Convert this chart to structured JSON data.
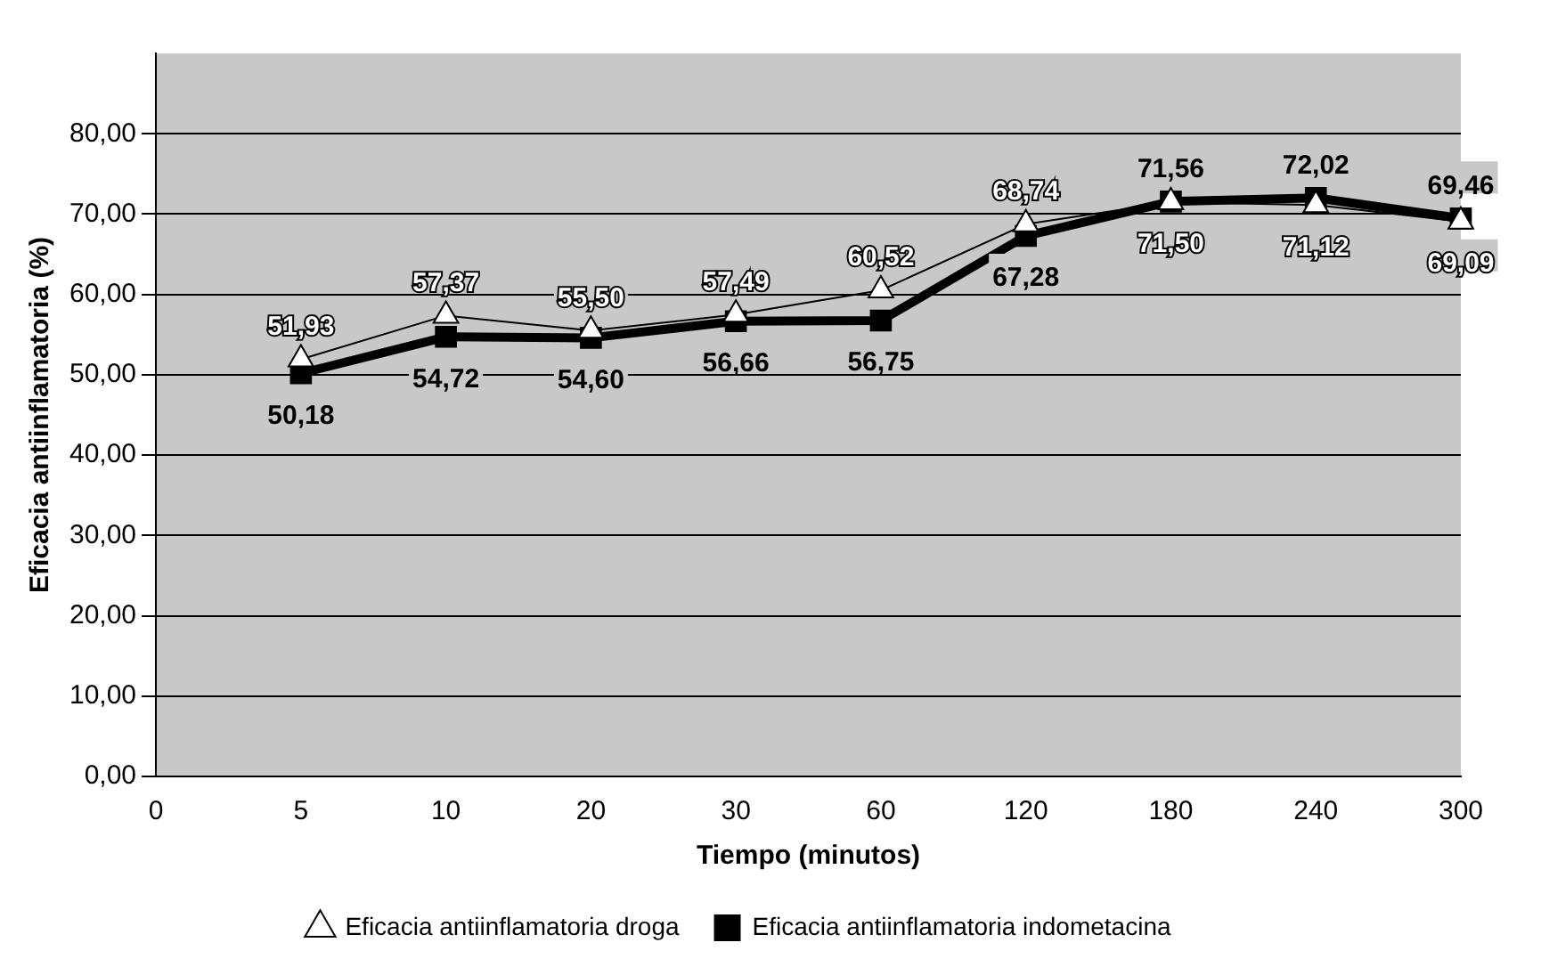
{
  "chart_data": {
    "type": "line",
    "xlabel": "Tiempo (minutos)",
    "ylabel": "Eficacia antiinflamatoria (%)",
    "categories": [
      "0",
      "5",
      "10",
      "20",
      "30",
      "60",
      "120",
      "180",
      "240",
      "300"
    ],
    "series": [
      {
        "name": "Eficacia antiinflamatoria droga",
        "color": "#ffffff",
        "marker": "triangle",
        "values": [
          null,
          51.93,
          57.37,
          55.5,
          57.49,
          60.52,
          68.74,
          71.5,
          71.12,
          69.09
        ],
        "value_labels": [
          null,
          "51,93",
          "57,37",
          "55,50",
          "57,49",
          "60,52",
          "68,74",
          "71,50",
          "71,12",
          "69,09"
        ]
      },
      {
        "name": "Eficacia antiinflamatoria indometacina",
        "color": "#000000",
        "marker": "square",
        "values": [
          null,
          50.18,
          54.72,
          54.6,
          56.66,
          56.75,
          67.28,
          71.56,
          72.02,
          69.46
        ],
        "value_labels": [
          null,
          "50,18",
          "54,72",
          "54,60",
          "56,66",
          "56,75",
          "67,28",
          "71,56",
          "72,02",
          "69,46"
        ]
      }
    ],
    "ylim": [
      0,
      90
    ],
    "yticks": [
      {
        "value": 0,
        "label": "0,00"
      },
      {
        "value": 10,
        "label": "10,00"
      },
      {
        "value": 20,
        "label": "20,00"
      },
      {
        "value": 30,
        "label": "30,00"
      },
      {
        "value": 40,
        "label": "40,00"
      },
      {
        "value": 50,
        "label": "50,00"
      },
      {
        "value": 60,
        "label": "60,00"
      },
      {
        "value": 70,
        "label": "70,00"
      },
      {
        "value": 80,
        "label": "80,00"
      }
    ],
    "grid": "y",
    "legend": "bottom",
    "line_style": "solid"
  }
}
